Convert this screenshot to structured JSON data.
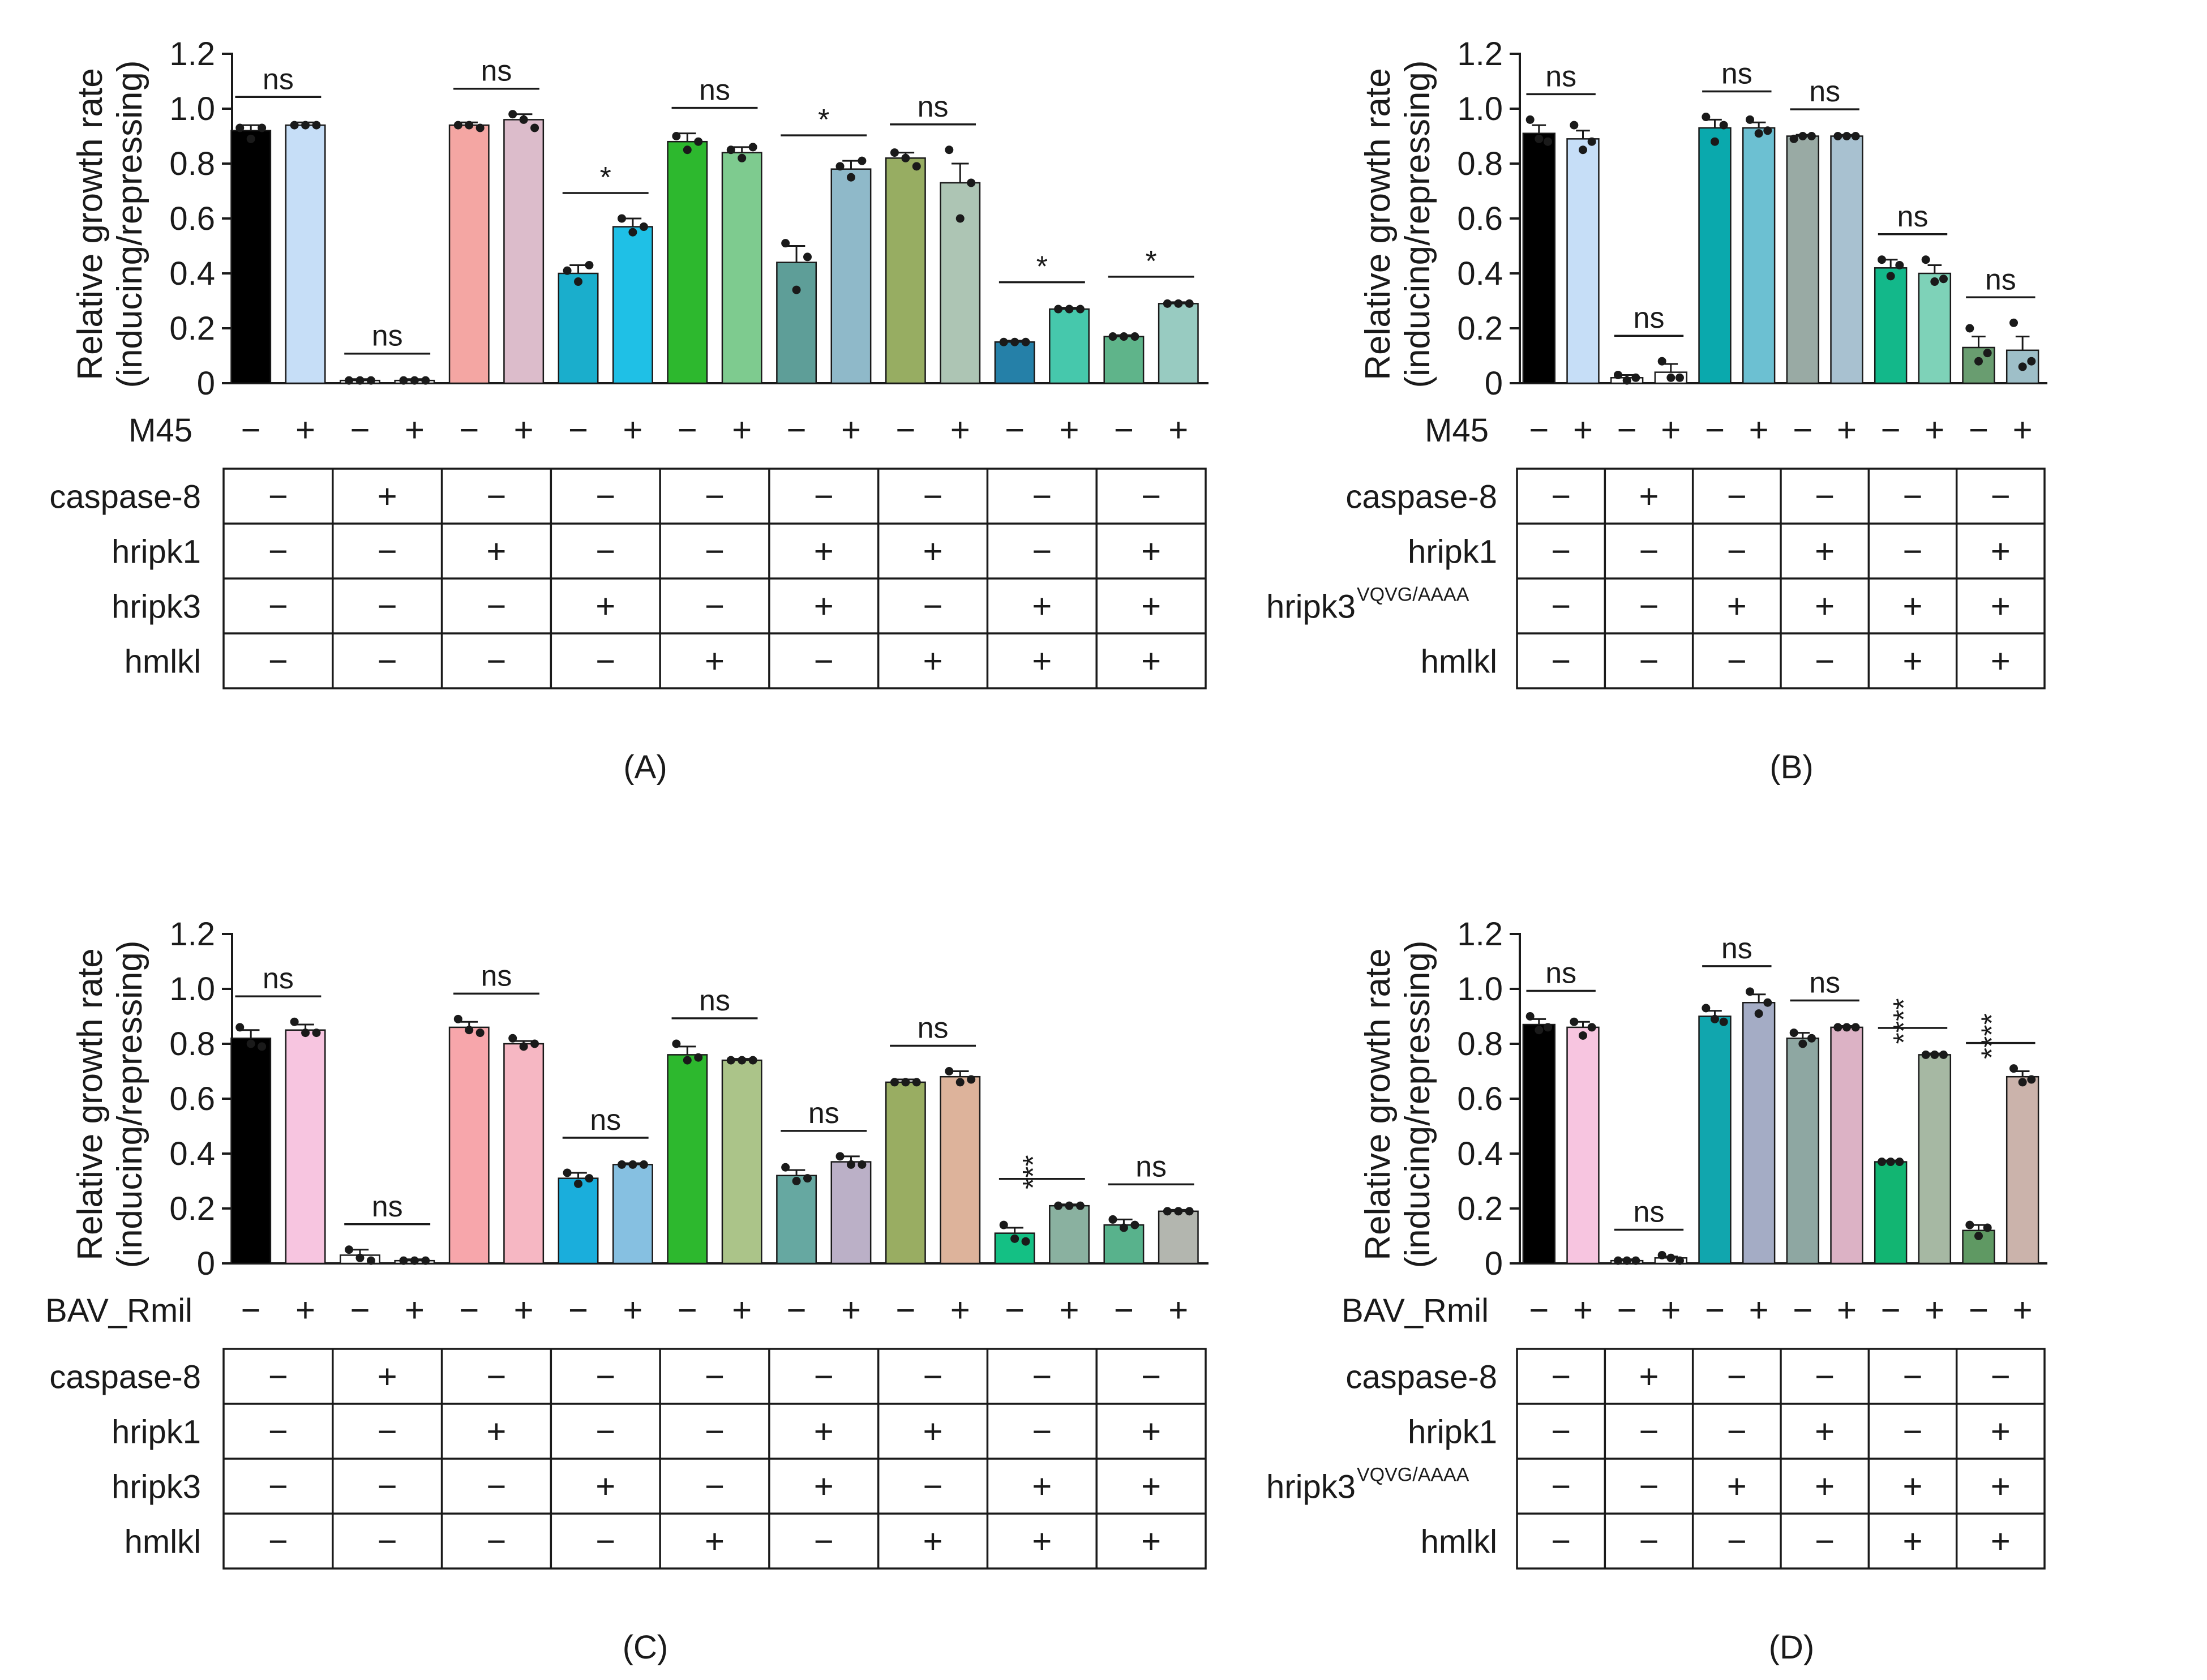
{
  "chart_data": [
    {
      "type": "bar",
      "panel_label": "(A)",
      "ylabel": [
        "Relative growth rate",
        "(inducing/repressing)"
      ],
      "ylim": [
        0,
        1.2
      ],
      "yticks": [
        "0",
        "0.2",
        "0.4",
        "0.6",
        "0.8",
        "1.0",
        "1.2"
      ],
      "treatment_label": "M45",
      "treatment_signs": [
        "−",
        "+",
        "−",
        "+",
        "−",
        "+",
        "−",
        "+",
        "−",
        "+",
        "−",
        "+",
        "−",
        "+",
        "−",
        "+",
        "−",
        "+"
      ],
      "values": [
        0.92,
        0.94,
        0.01,
        0.01,
        0.94,
        0.96,
        0.4,
        0.57,
        0.88,
        0.84,
        0.44,
        0.78,
        0.82,
        0.73,
        0.15,
        0.27,
        0.17,
        0.29
      ],
      "errors": [
        0.02,
        0.01,
        0.005,
        0.005,
        0.01,
        0.02,
        0.03,
        0.03,
        0.03,
        0.02,
        0.06,
        0.03,
        0.02,
        0.07,
        0.005,
        0.005,
        0.005,
        0.005
      ],
      "points": [
        [
          0.93,
          0.89,
          0.93
        ],
        [
          0.94,
          0.94,
          0.94
        ],
        [
          0.01,
          0.01,
          0.01
        ],
        [
          0.01,
          0.01,
          0.01
        ],
        [
          0.94,
          0.94,
          0.93
        ],
        [
          0.98,
          0.96,
          0.93
        ],
        [
          0.41,
          0.37,
          0.43
        ],
        [
          0.6,
          0.55,
          0.57
        ],
        [
          0.9,
          0.85,
          0.88
        ],
        [
          0.85,
          0.82,
          0.86
        ],
        [
          0.51,
          0.34,
          0.46
        ],
        [
          0.79,
          0.75,
          0.81
        ],
        [
          0.84,
          0.82,
          0.79
        ],
        [
          0.85,
          0.6,
          0.73
        ],
        [
          0.15,
          0.15,
          0.15
        ],
        [
          0.27,
          0.27,
          0.27
        ],
        [
          0.17,
          0.17,
          0.17
        ],
        [
          0.29,
          0.29,
          0.29
        ]
      ],
      "colors": [
        "#000000",
        "#c6def7",
        "#ffffff",
        "#ffffff",
        "#f4a6a3",
        "#dcbccb",
        "#1aaecc",
        "#1fc0e6",
        "#2db82e",
        "#7ecb8f",
        "#5e9e98",
        "#8fb9c9",
        "#97ad62",
        "#adc5b4",
        "#2580a8",
        "#46c8ac",
        "#5fb48a",
        "#98cbc1"
      ],
      "significance": [
        "ns",
        "ns",
        "ns",
        "*",
        "ns",
        "*",
        "ns",
        "*",
        "*"
      ],
      "conditions": [
        {
          "label": "caspase-8",
          "sup": "",
          "signs": [
            "−",
            "+",
            "−",
            "−",
            "−",
            "−",
            "−",
            "−",
            "−"
          ]
        },
        {
          "label": "hripk1",
          "sup": "",
          "signs": [
            "−",
            "−",
            "+",
            "−",
            "−",
            "+",
            "+",
            "−",
            "+"
          ]
        },
        {
          "label": "hripk3",
          "sup": "",
          "signs": [
            "−",
            "−",
            "−",
            "+",
            "−",
            "+",
            "−",
            "+",
            "+"
          ]
        },
        {
          "label": "hmlkl",
          "sup": "",
          "signs": [
            "−",
            "−",
            "−",
            "−",
            "+",
            "−",
            "+",
            "+",
            "+"
          ]
        }
      ]
    },
    {
      "type": "bar",
      "panel_label": "(B)",
      "ylabel": [
        "Relative growth rate",
        "(inducing/repressing)"
      ],
      "ylim": [
        0,
        1.2
      ],
      "yticks": [
        "0",
        "0.2",
        "0.4",
        "0.6",
        "0.8",
        "1.0",
        "1.2"
      ],
      "treatment_label": "M45",
      "treatment_signs": [
        "−",
        "+",
        "−",
        "+",
        "−",
        "+",
        "−",
        "+",
        "−",
        "+",
        "−",
        "+"
      ],
      "values": [
        0.91,
        0.89,
        0.02,
        0.04,
        0.93,
        0.93,
        0.9,
        0.9,
        0.42,
        0.4,
        0.13,
        0.12
      ],
      "errors": [
        0.03,
        0.03,
        0.01,
        0.03,
        0.03,
        0.02,
        0.005,
        0.005,
        0.03,
        0.03,
        0.04,
        0.05
      ],
      "points": [
        [
          0.96,
          0.89,
          0.88
        ],
        [
          0.94,
          0.85,
          0.88
        ],
        [
          0.03,
          0.01,
          0.02
        ],
        [
          0.08,
          0.02,
          0.02
        ],
        [
          0.97,
          0.88,
          0.94
        ],
        [
          0.96,
          0.91,
          0.92
        ],
        [
          0.89,
          0.9,
          0.9
        ],
        [
          0.9,
          0.9,
          0.9
        ],
        [
          0.45,
          0.39,
          0.43
        ],
        [
          0.45,
          0.37,
          0.38
        ],
        [
          0.2,
          0.08,
          0.11
        ],
        [
          0.22,
          0.06,
          0.08
        ]
      ],
      "colors": [
        "#000000",
        "#c6def7",
        "#ffffff",
        "#ffffff",
        "#0aa9ad",
        "#6cc0d2",
        "#99aaa4",
        "#a8c1d0",
        "#13b88a",
        "#7ed2b8",
        "#699d70",
        "#9ebfc8"
      ],
      "significance": [
        "ns",
        "ns",
        "ns",
        "ns",
        "ns",
        "ns"
      ],
      "conditions": [
        {
          "label": "caspase-8",
          "sup": "",
          "signs": [
            "−",
            "+",
            "−",
            "−",
            "−",
            "−"
          ]
        },
        {
          "label": "hripk1",
          "sup": "",
          "signs": [
            "−",
            "−",
            "−",
            "+",
            "−",
            "+"
          ]
        },
        {
          "label": "hripk3",
          "sup": "VQVG/AAAA",
          "signs": [
            "−",
            "−",
            "+",
            "+",
            "+",
            "+"
          ]
        },
        {
          "label": "hmlkl",
          "sup": "",
          "signs": [
            "−",
            "−",
            "−",
            "−",
            "+",
            "+"
          ]
        }
      ]
    },
    {
      "type": "bar",
      "panel_label": "(C)",
      "ylabel": [
        "Relative growth rate",
        "(inducing/repressing)"
      ],
      "ylim": [
        0,
        1.2
      ],
      "yticks": [
        "0",
        "0.2",
        "0.4",
        "0.6",
        "0.8",
        "1.0",
        "1.2"
      ],
      "treatment_label": "BAV_Rmil",
      "treatment_signs": [
        "−",
        "+",
        "−",
        "+",
        "−",
        "+",
        "−",
        "+",
        "−",
        "+",
        "−",
        "+",
        "−",
        "+",
        "−",
        "+",
        "−",
        "+"
      ],
      "values": [
        0.82,
        0.85,
        0.03,
        0.01,
        0.86,
        0.8,
        0.31,
        0.36,
        0.76,
        0.74,
        0.32,
        0.37,
        0.66,
        0.68,
        0.11,
        0.21,
        0.14,
        0.19
      ],
      "errors": [
        0.03,
        0.02,
        0.02,
        0.005,
        0.02,
        0.01,
        0.02,
        0.005,
        0.03,
        0.005,
        0.02,
        0.02,
        0.01,
        0.02,
        0.02,
        0.005,
        0.02,
        0.005
      ],
      "points": [
        [
          0.86,
          0.8,
          0.79
        ],
        [
          0.88,
          0.84,
          0.84
        ],
        [
          0.05,
          0.02,
          0.01
        ],
        [
          0.01,
          0.01,
          0.01
        ],
        [
          0.89,
          0.85,
          0.84
        ],
        [
          0.82,
          0.79,
          0.8
        ],
        [
          0.33,
          0.29,
          0.31
        ],
        [
          0.36,
          0.36,
          0.36
        ],
        [
          0.8,
          0.74,
          0.75
        ],
        [
          0.74,
          0.74,
          0.74
        ],
        [
          0.35,
          0.3,
          0.31
        ],
        [
          0.39,
          0.36,
          0.36
        ],
        [
          0.66,
          0.66,
          0.66
        ],
        [
          0.7,
          0.66,
          0.67
        ],
        [
          0.14,
          0.09,
          0.08
        ],
        [
          0.21,
          0.21,
          0.21
        ],
        [
          0.16,
          0.13,
          0.14
        ],
        [
          0.19,
          0.19,
          0.19
        ]
      ],
      "colors": [
        "#000000",
        "#f7c5e0",
        "#ffffff",
        "#ffffff",
        "#f7a6ab",
        "#f6b7c3",
        "#1aaedc",
        "#86c0e1",
        "#2db82e",
        "#abc489",
        "#66a8a1",
        "#bbb0c7",
        "#99ad62",
        "#ddb39b",
        "#14c084",
        "#8ab1a0",
        "#58b28c",
        "#b3b6af"
      ],
      "significance": [
        "ns",
        "ns",
        "ns",
        "ns",
        "ns",
        "ns",
        "ns",
        "***",
        "ns"
      ],
      "conditions": [
        {
          "label": "caspase-8",
          "sup": "",
          "signs": [
            "−",
            "+",
            "−",
            "−",
            "−",
            "−",
            "−",
            "−",
            "−"
          ]
        },
        {
          "label": "hripk1",
          "sup": "",
          "signs": [
            "−",
            "−",
            "+",
            "−",
            "−",
            "+",
            "+",
            "−",
            "+"
          ]
        },
        {
          "label": "hripk3",
          "sup": "",
          "signs": [
            "−",
            "−",
            "−",
            "+",
            "−",
            "+",
            "−",
            "+",
            "+"
          ]
        },
        {
          "label": "hmlkl",
          "sup": "",
          "signs": [
            "−",
            "−",
            "−",
            "−",
            "+",
            "−",
            "+",
            "+",
            "+"
          ]
        }
      ]
    },
    {
      "type": "bar",
      "panel_label": "(D)",
      "ylabel": [
        "Relative growth rate",
        "(inducing/repressing)"
      ],
      "ylim": [
        0,
        1.2
      ],
      "yticks": [
        "0",
        "0.2",
        "0.4",
        "0.6",
        "0.8",
        "1.0",
        "1.2"
      ],
      "treatment_label": "BAV_Rmil",
      "treatment_signs": [
        "−",
        "+",
        "−",
        "+",
        "−",
        "+",
        "−",
        "+",
        "−",
        "+",
        "−",
        "+"
      ],
      "values": [
        0.87,
        0.86,
        0.01,
        0.02,
        0.9,
        0.95,
        0.82,
        0.86,
        0.37,
        0.76,
        0.12,
        0.68
      ],
      "errors": [
        0.02,
        0.02,
        0.005,
        0.005,
        0.02,
        0.03,
        0.02,
        0.005,
        0.005,
        0.005,
        0.02,
        0.02
      ],
      "points": [
        [
          0.9,
          0.85,
          0.86
        ],
        [
          0.88,
          0.83,
          0.86
        ],
        [
          0.01,
          0.01,
          0.01
        ],
        [
          0.03,
          0.02,
          0.01
        ],
        [
          0.93,
          0.89,
          0.88
        ],
        [
          0.99,
          0.91,
          0.95
        ],
        [
          0.84,
          0.8,
          0.82
        ],
        [
          0.86,
          0.86,
          0.86
        ],
        [
          0.37,
          0.37,
          0.37
        ],
        [
          0.76,
          0.76,
          0.76
        ],
        [
          0.14,
          0.1,
          0.13
        ],
        [
          0.71,
          0.66,
          0.67
        ]
      ],
      "colors": [
        "#000000",
        "#f7c5e0",
        "#ffffff",
        "#ffffff",
        "#11a6ae",
        "#a4acc5",
        "#8ea7a2",
        "#dcb2c5",
        "#12b572",
        "#a6b8a3",
        "#5f9963",
        "#cbb3ab"
      ],
      "significance": [
        "ns",
        "ns",
        "ns",
        "ns",
        "****",
        "****"
      ],
      "conditions": [
        {
          "label": "caspase-8",
          "sup": "",
          "signs": [
            "−",
            "+",
            "−",
            "−",
            "−",
            "−"
          ]
        },
        {
          "label": "hripk1",
          "sup": "",
          "signs": [
            "−",
            "−",
            "−",
            "+",
            "−",
            "+"
          ]
        },
        {
          "label": "hripk3",
          "sup": "VQVG/AAAA",
          "signs": [
            "−",
            "−",
            "+",
            "+",
            "+",
            "+"
          ]
        },
        {
          "label": "hmlkl",
          "sup": "",
          "signs": [
            "−",
            "−",
            "−",
            "−",
            "+",
            "+"
          ]
        }
      ]
    }
  ]
}
